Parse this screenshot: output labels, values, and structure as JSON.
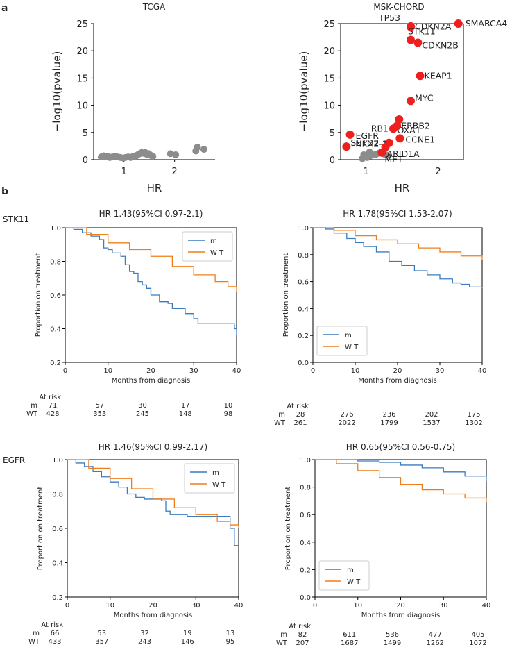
{
  "panel_labels": {
    "a": "a",
    "b": "b"
  },
  "colors": {
    "m": "#3b7bbf",
    "wt": "#f07d1c",
    "grey": "#8c8c8c",
    "red": "#ee1f1f"
  },
  "chart_data": [
    {
      "type": "scatter",
      "title": "TCGA",
      "xlabel": "HR",
      "ylabel": "−log10(pvalue)",
      "xlim": [
        0.4,
        2.8
      ],
      "ylim": [
        0,
        25
      ],
      "xticks": [
        1,
        2
      ],
      "yticks": [
        0,
        5,
        10,
        15,
        20,
        25
      ],
      "points": [
        [
          0.55,
          0.5
        ],
        [
          0.6,
          0.7
        ],
        [
          0.63,
          0.5
        ],
        [
          0.68,
          0.6
        ],
        [
          0.72,
          0.4
        ],
        [
          0.77,
          0.5
        ],
        [
          0.82,
          0.6
        ],
        [
          0.88,
          0.5
        ],
        [
          0.93,
          0.4
        ],
        [
          0.98,
          0.3
        ],
        [
          1.03,
          0.4
        ],
        [
          1.08,
          0.5
        ],
        [
          1.13,
          0.4
        ],
        [
          1.18,
          0.6
        ],
        [
          1.22,
          0.5
        ],
        [
          1.27,
          0.9
        ],
        [
          1.31,
          1.1
        ],
        [
          1.35,
          1.3
        ],
        [
          1.38,
          1.2
        ],
        [
          1.42,
          1.3
        ],
        [
          1.45,
          1.0
        ],
        [
          1.49,
          1.1
        ],
        [
          1.53,
          0.8
        ],
        [
          1.57,
          0.6
        ],
        [
          1.92,
          1.1
        ],
        [
          2.02,
          0.9
        ],
        [
          2.42,
          1.6
        ],
        [
          2.45,
          2.3
        ],
        [
          2.58,
          1.9
        ]
      ]
    },
    {
      "type": "scatter",
      "title": "MSK-CHORD",
      "xlabel": "HR",
      "ylabel": "−log10(pvalue)",
      "xlim": [
        0.65,
        2.35
      ],
      "ylim": [
        0,
        25
      ],
      "xticks": [
        1,
        2
      ],
      "yticks": [
        0,
        5,
        10,
        15,
        20,
        25
      ],
      "grey_points": [
        [
          0.95,
          0.2
        ],
        [
          0.98,
          0.5
        ],
        [
          1.02,
          0.4
        ],
        [
          1.06,
          0.7
        ],
        [
          1.1,
          0.9
        ],
        [
          1.14,
          1.0
        ],
        [
          1.18,
          1.2
        ],
        [
          1.22,
          1.3
        ],
        [
          1.26,
          1.0
        ],
        [
          1.3,
          0.8
        ],
        [
          1.05,
          1.4
        ],
        [
          0.97,
          0.9
        ]
      ],
      "genes": [
        {
          "name": "SMARCA4",
          "hr": 2.28,
          "p": 25.0
        },
        {
          "name": "TP53",
          "hr": 1.62,
          "p": 24.5
        },
        {
          "name": "CDKN2A",
          "hr": 1.62,
          "p": 24.4
        },
        {
          "name": "STK11",
          "hr": 1.62,
          "p": 22.0
        },
        {
          "name": "CDKN2B",
          "hr": 1.72,
          "p": 21.5
        },
        {
          "name": "KEAP1",
          "hr": 1.75,
          "p": 15.4
        },
        {
          "name": "MYC",
          "hr": 1.62,
          "p": 10.8
        },
        {
          "name": "FOXA1",
          "hr": 1.46,
          "p": 7.4
        },
        {
          "name": "ERBB2",
          "hr": 1.43,
          "p": 6.2
        },
        {
          "name": "EGFR",
          "hr": 0.78,
          "p": 4.6
        },
        {
          "name": "RB1",
          "hr": 1.38,
          "p": 5.7
        },
        {
          "name": "CCNE1",
          "hr": 1.47,
          "p": 3.9
        },
        {
          "name": "NKX2-1",
          "hr": 1.32,
          "p": 3.1
        },
        {
          "name": "SETD2",
          "hr": 0.73,
          "p": 2.4
        },
        {
          "name": "ARID1A",
          "hr": 1.27,
          "p": 2.3
        },
        {
          "name": "MET",
          "hr": 1.22,
          "p": 1.3
        }
      ]
    },
    {
      "type": "line",
      "gene": "STK11",
      "title": "HR  1.43(95%CI    0.97-2.1)",
      "xlabel": "Months from diagnosis",
      "ylabel": "Proportion on treatment",
      "xlim": [
        0,
        40
      ],
      "ylim": [
        0.2,
        1.0
      ],
      "xticks": [
        0,
        10,
        20,
        30,
        40
      ],
      "yticks": [
        0.2,
        0.4,
        0.6,
        0.8,
        1.0
      ],
      "legend": "top-right",
      "series": [
        {
          "name": "m",
          "color": "#3b7bbf",
          "points": [
            [
              0,
              1.0
            ],
            [
              2,
              0.99
            ],
            [
              4,
              0.97
            ],
            [
              6,
              0.95
            ],
            [
              8,
              0.93
            ],
            [
              9,
              0.88
            ],
            [
              10,
              0.87
            ],
            [
              11,
              0.85
            ],
            [
              13,
              0.83
            ],
            [
              14,
              0.78
            ],
            [
              15,
              0.74
            ],
            [
              16,
              0.73
            ],
            [
              17,
              0.68
            ],
            [
              18,
              0.66
            ],
            [
              19,
              0.64
            ],
            [
              20,
              0.6
            ],
            [
              22,
              0.56
            ],
            [
              24,
              0.55
            ],
            [
              25,
              0.52
            ],
            [
              27,
              0.52
            ],
            [
              28,
              0.49
            ],
            [
              30,
              0.46
            ],
            [
              31,
              0.43
            ],
            [
              35,
              0.43
            ],
            [
              39,
              0.43
            ],
            [
              39.5,
              0.4
            ],
            [
              40,
              0.36
            ]
          ]
        },
        {
          "name": "W T",
          "color": "#f07d1c",
          "points": [
            [
              0,
              1.0
            ],
            [
              5,
              0.96
            ],
            [
              10,
              0.91
            ],
            [
              15,
              0.87
            ],
            [
              20,
              0.83
            ],
            [
              25,
              0.77
            ],
            [
              30,
              0.72
            ],
            [
              35,
              0.68
            ],
            [
              38,
              0.65
            ],
            [
              40,
              0.62
            ]
          ]
        }
      ],
      "at_risk": {
        "label": "At risk",
        "x": [
          0,
          10,
          20,
          30,
          40
        ],
        "rows": [
          {
            "group": "m",
            "values": [
              "71",
              "57",
              "30",
              "17",
              "10"
            ]
          },
          {
            "group": "WT",
            "values": [
              "428",
              "353",
              "245",
              "148",
              "98"
            ]
          }
        ]
      }
    },
    {
      "type": "line",
      "gene": "STK11",
      "title": "HR  1.78(95%CI     1.53-2.07)",
      "xlabel": "Months from diagnosis",
      "ylabel": "Proportion on treatment",
      "xlim": [
        0,
        40
      ],
      "ylim": [
        0.0,
        1.0
      ],
      "xticks": [
        0,
        10,
        20,
        30,
        40
      ],
      "yticks": [
        0.0,
        0.2,
        0.4,
        0.6,
        0.8,
        1.0
      ],
      "legend": "bottom-left",
      "series": [
        {
          "name": "m",
          "color": "#3b7bbf",
          "points": [
            [
              0,
              1.0
            ],
            [
              3,
              0.99
            ],
            [
              5,
              0.96
            ],
            [
              8,
              0.92
            ],
            [
              10,
              0.89
            ],
            [
              12,
              0.86
            ],
            [
              15,
              0.82
            ],
            [
              18,
              0.75
            ],
            [
              21,
              0.72
            ],
            [
              24,
              0.68
            ],
            [
              27,
              0.65
            ],
            [
              30,
              0.62
            ],
            [
              33,
              0.59
            ],
            [
              35,
              0.58
            ],
            [
              37,
              0.56
            ],
            [
              40,
              0.55
            ]
          ]
        },
        {
          "name": "W T",
          "color": "#f07d1c",
          "points": [
            [
              0,
              1.0
            ],
            [
              5,
              0.98
            ],
            [
              10,
              0.94
            ],
            [
              15,
              0.91
            ],
            [
              20,
              0.88
            ],
            [
              25,
              0.85
            ],
            [
              30,
              0.82
            ],
            [
              35,
              0.79
            ],
            [
              40,
              0.76
            ]
          ]
        }
      ],
      "at_risk": {
        "label": "At risk",
        "x": [
          0,
          10,
          20,
          30,
          40
        ],
        "rows": [
          {
            "group": "m",
            "values": [
              "28",
              "276",
              "236",
              "202",
              "175"
            ]
          },
          {
            "group": "WT",
            "values": [
              "261",
              "2022",
              "1799",
              "1537",
              "1302"
            ]
          }
        ]
      }
    },
    {
      "type": "line",
      "gene": "EGFR",
      "title": "HR  1.46(95%CI    0.99-2.17)",
      "xlabel": "Months from diagnosis",
      "ylabel": "Proportion on treatment",
      "xlim": [
        0,
        40
      ],
      "ylim": [
        0.2,
        1.0
      ],
      "xticks": [
        0,
        10,
        20,
        30,
        40
      ],
      "yticks": [
        0.2,
        0.4,
        0.6,
        0.8,
        1.0
      ],
      "legend": "top-right",
      "series": [
        {
          "name": "m",
          "color": "#3b7bbf",
          "points": [
            [
              0,
              1.0
            ],
            [
              2,
              0.98
            ],
            [
              4,
              0.96
            ],
            [
              6,
              0.93
            ],
            [
              8,
              0.9
            ],
            [
              10,
              0.87
            ],
            [
              12,
              0.84
            ],
            [
              14,
              0.8
            ],
            [
              16,
              0.78
            ],
            [
              18,
              0.77
            ],
            [
              20,
              0.77
            ],
            [
              22,
              0.76
            ],
            [
              23,
              0.7
            ],
            [
              24,
              0.68
            ],
            [
              28,
              0.67
            ],
            [
              30,
              0.67
            ],
            [
              34,
              0.67
            ],
            [
              36,
              0.67
            ],
            [
              38,
              0.6
            ],
            [
              39,
              0.5
            ],
            [
              40,
              0.5
            ]
          ]
        },
        {
          "name": "W T",
          "color": "#f07d1c",
          "points": [
            [
              0,
              1.0
            ],
            [
              5,
              0.95
            ],
            [
              10,
              0.89
            ],
            [
              15,
              0.83
            ],
            [
              20,
              0.77
            ],
            [
              25,
              0.72
            ],
            [
              30,
              0.68
            ],
            [
              35,
              0.64
            ],
            [
              38,
              0.62
            ],
            [
              40,
              0.6
            ]
          ]
        }
      ],
      "at_risk": {
        "label": "At risk",
        "x": [
          0,
          10,
          20,
          30,
          40
        ],
        "rows": [
          {
            "group": "m",
            "values": [
              "66",
              "53",
              "32",
              "19",
              "13"
            ]
          },
          {
            "group": "WT",
            "values": [
              "433",
              "357",
              "243",
              "146",
              "95"
            ]
          }
        ]
      }
    },
    {
      "type": "line",
      "gene": "EGFR",
      "title": "HR  0.65(95%CI     0.56-0.75)",
      "xlabel": "Months from diagnosis",
      "ylabel": "Proportion on treatment",
      "xlim": [
        0,
        40
      ],
      "ylim": [
        0.0,
        1.0
      ],
      "xticks": [
        0,
        10,
        20,
        30,
        40
      ],
      "yticks": [
        0.0,
        0.2,
        0.4,
        0.6,
        0.8,
        1.0
      ],
      "legend": "bottom-left",
      "series": [
        {
          "name": "m",
          "color": "#3b7bbf",
          "points": [
            [
              0,
              1.0
            ],
            [
              10,
              0.99
            ],
            [
              15,
              0.98
            ],
            [
              20,
              0.96
            ],
            [
              25,
              0.94
            ],
            [
              30,
              0.91
            ],
            [
              35,
              0.88
            ],
            [
              40,
              0.84
            ]
          ]
        },
        {
          "name": "W T",
          "color": "#f07d1c",
          "points": [
            [
              0,
              1.0
            ],
            [
              5,
              0.97
            ],
            [
              10,
              0.92
            ],
            [
              15,
              0.87
            ],
            [
              20,
              0.82
            ],
            [
              25,
              0.78
            ],
            [
              30,
              0.75
            ],
            [
              35,
              0.72
            ],
            [
              40,
              0.69
            ]
          ]
        }
      ],
      "at_risk": {
        "label": "At risk",
        "x": [
          0,
          10,
          20,
          30,
          40
        ],
        "rows": [
          {
            "group": "m",
            "values": [
              "82",
              "611",
              "536",
              "477",
              "405"
            ]
          },
          {
            "group": "WT",
            "values": [
              "207",
              "1687",
              "1499",
              "1262",
              "1072"
            ]
          }
        ]
      }
    }
  ]
}
